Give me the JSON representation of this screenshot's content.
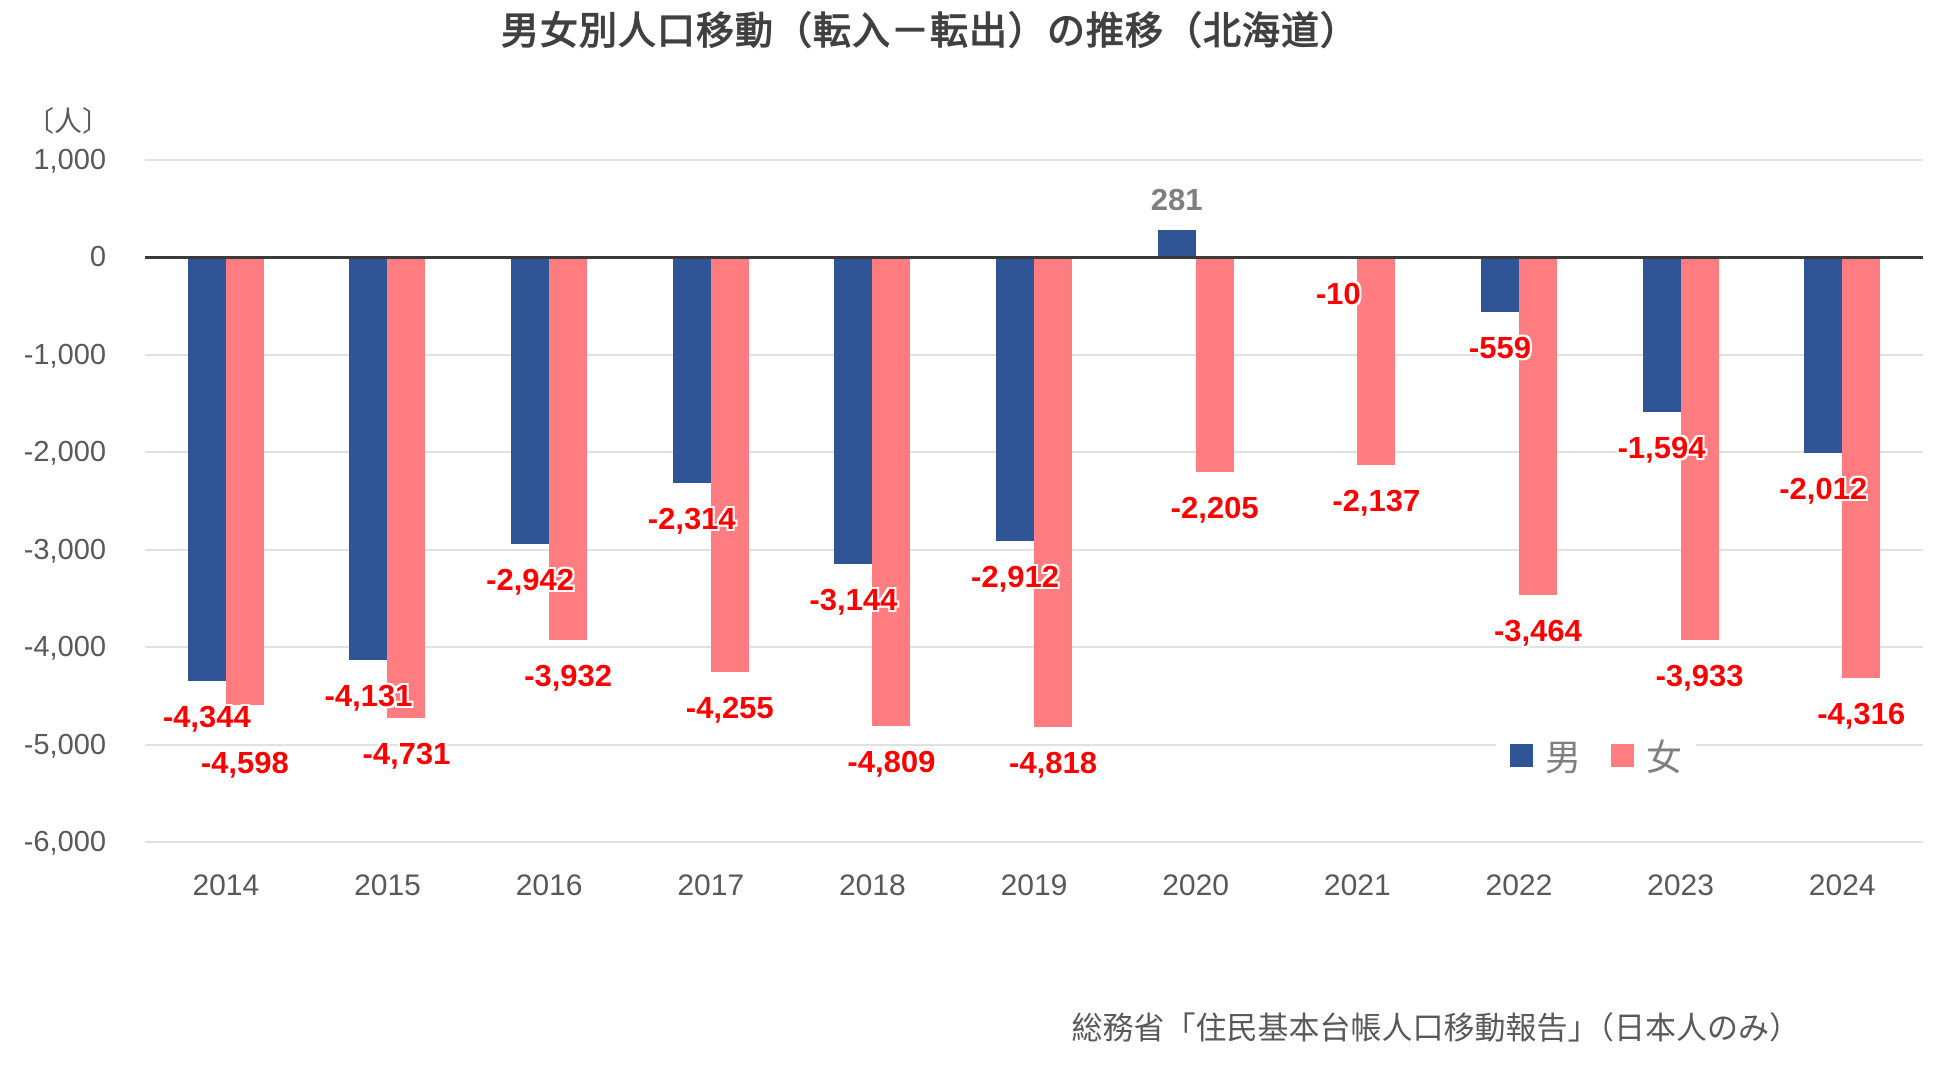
{
  "title": "男女別人口移動（転入－転出）の推移（北海道）",
  "unit_label": "〔人〕",
  "source": "総務省「住民基本台帳人口移動報告」（日本人のみ）",
  "colors": {
    "male_bar": "#2f5597",
    "female_bar": "#ff7c80",
    "negative_label": "#ff0000",
    "positive_label": "#7f7f7f",
    "axis_text": "#595959",
    "gridline": "#e1e1e1",
    "zero_line": "#3a3a3a",
    "title_text": "#404040"
  },
  "chart_data": {
    "type": "bar",
    "title": "男女別人口移動（転入－転出）の推移（北海道）",
    "ylabel": "〔人〕",
    "xlabel": "",
    "categories": [
      "2014",
      "2015",
      "2016",
      "2017",
      "2018",
      "2019",
      "2020",
      "2021",
      "2022",
      "2023",
      "2024"
    ],
    "series": [
      {
        "name": "男",
        "color": "#2f5597",
        "values": [
          -4344,
          -4131,
          -2942,
          -2314,
          -3144,
          -2912,
          281,
          -10,
          -559,
          -1594,
          -2012
        ]
      },
      {
        "name": "女",
        "color": "#ff7c80",
        "values": [
          -4598,
          -4731,
          -3932,
          -4255,
          -4809,
          -4818,
          -2205,
          -2137,
          -3464,
          -3933,
          -4316
        ]
      }
    ],
    "yticks": [
      1000,
      0,
      -1000,
      -2000,
      -3000,
      -4000,
      -5000,
      -6000
    ],
    "ylim": [
      -6000,
      1000
    ],
    "grid": true,
    "legend_position": "inside-lower-right",
    "data_labels": true
  }
}
